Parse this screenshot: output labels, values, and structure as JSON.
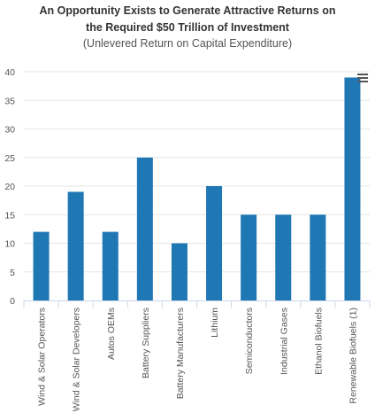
{
  "chart_data": {
    "type": "bar",
    "title_lines": [
      "An Opportunity Exists to Generate Attractive Returns on",
      "the Required $50 Trillion of Investment"
    ],
    "subtitle": "(Unlevered Return on Capital Expenditure)",
    "xlabel": "",
    "ylabel": "",
    "categories": [
      "Wind & Solar Operators",
      "Wind & Solar Developers",
      "Autos OEMs",
      "Battery Suppliers",
      "Battery Manufacturers",
      "Lithium",
      "Semiconductors",
      "Industrial Gases",
      "Ethanol Biofuels",
      "Renewable Biofuels (1)"
    ],
    "values": [
      12,
      19,
      12,
      25,
      10,
      20,
      15,
      15,
      15,
      39
    ],
    "ylim": [
      0,
      40
    ],
    "yticks": [
      0,
      5,
      10,
      15,
      20,
      25,
      30,
      35,
      40
    ],
    "grid": true,
    "legend": "none",
    "bar_color": "#1f77b4",
    "grid_color": "#e6e6e6",
    "axis_color": "#ccd6eb",
    "label_color": "#555555"
  },
  "menu": {
    "icon": "hamburger-menu-icon"
  }
}
